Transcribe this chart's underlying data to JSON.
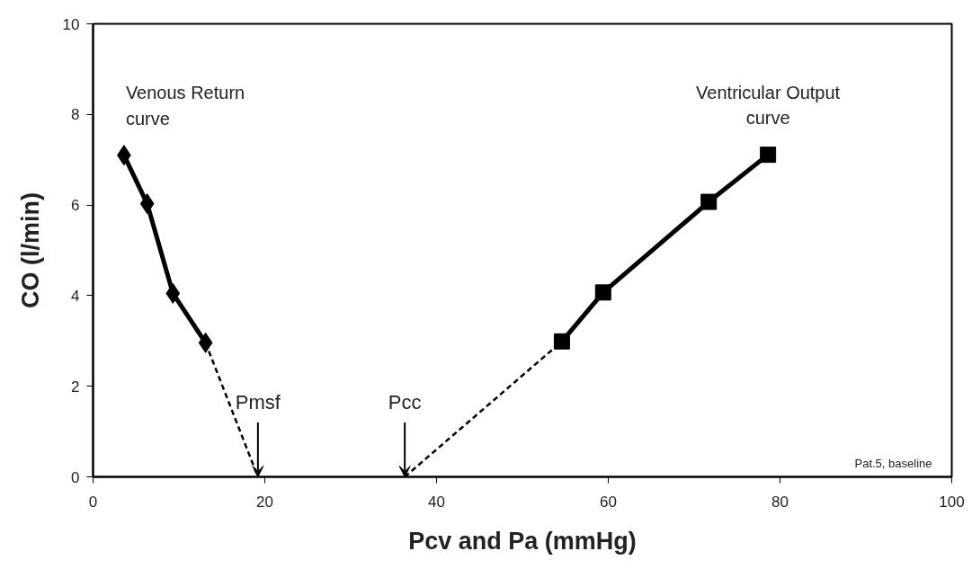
{
  "chart_data": {
    "type": "line",
    "xlabel": "Pcv and Pa (mmHg)",
    "ylabel": "CO (l/min)",
    "xlim": [
      0,
      100
    ],
    "xticks": [
      0,
      20,
      40,
      60,
      80,
      100
    ],
    "ylim": [
      0,
      10
    ],
    "yticks": [
      0,
      2,
      4,
      6,
      8,
      10
    ],
    "grid": false,
    "series": [
      {
        "name": "Venous Return\ncurve",
        "color": "#000000",
        "marker": "diamond",
        "line_style": "solid",
        "x": [
          3.6,
          6.3,
          9.3,
          13.1
        ],
        "values": [
          7.1,
          6.03,
          4.05,
          2.96
        ]
      },
      {
        "color": "#000000",
        "marker": "none",
        "line_style": "dashed",
        "x": [
          13.1,
          19.2
        ],
        "values": [
          2.96,
          0
        ]
      },
      {
        "name": "Ventricular Output\ncurve",
        "color": "#000000",
        "marker": "square",
        "line_style": "solid",
        "x": [
          54.6,
          59.4,
          71.7,
          78.6
        ],
        "values": [
          2.99,
          4.07,
          6.07,
          7.11
        ]
      },
      {
        "color": "#000000",
        "marker": "none",
        "line_style": "dashed",
        "x": [
          36.3,
          54.6
        ],
        "values": [
          0,
          2.99
        ]
      }
    ],
    "annotations": [
      {
        "text": "Pmsf",
        "x": 19.2,
        "y": 0
      },
      {
        "text": "Pcc",
        "x": 36.3,
        "y": 0
      },
      "Pat.5, baseline"
    ]
  }
}
